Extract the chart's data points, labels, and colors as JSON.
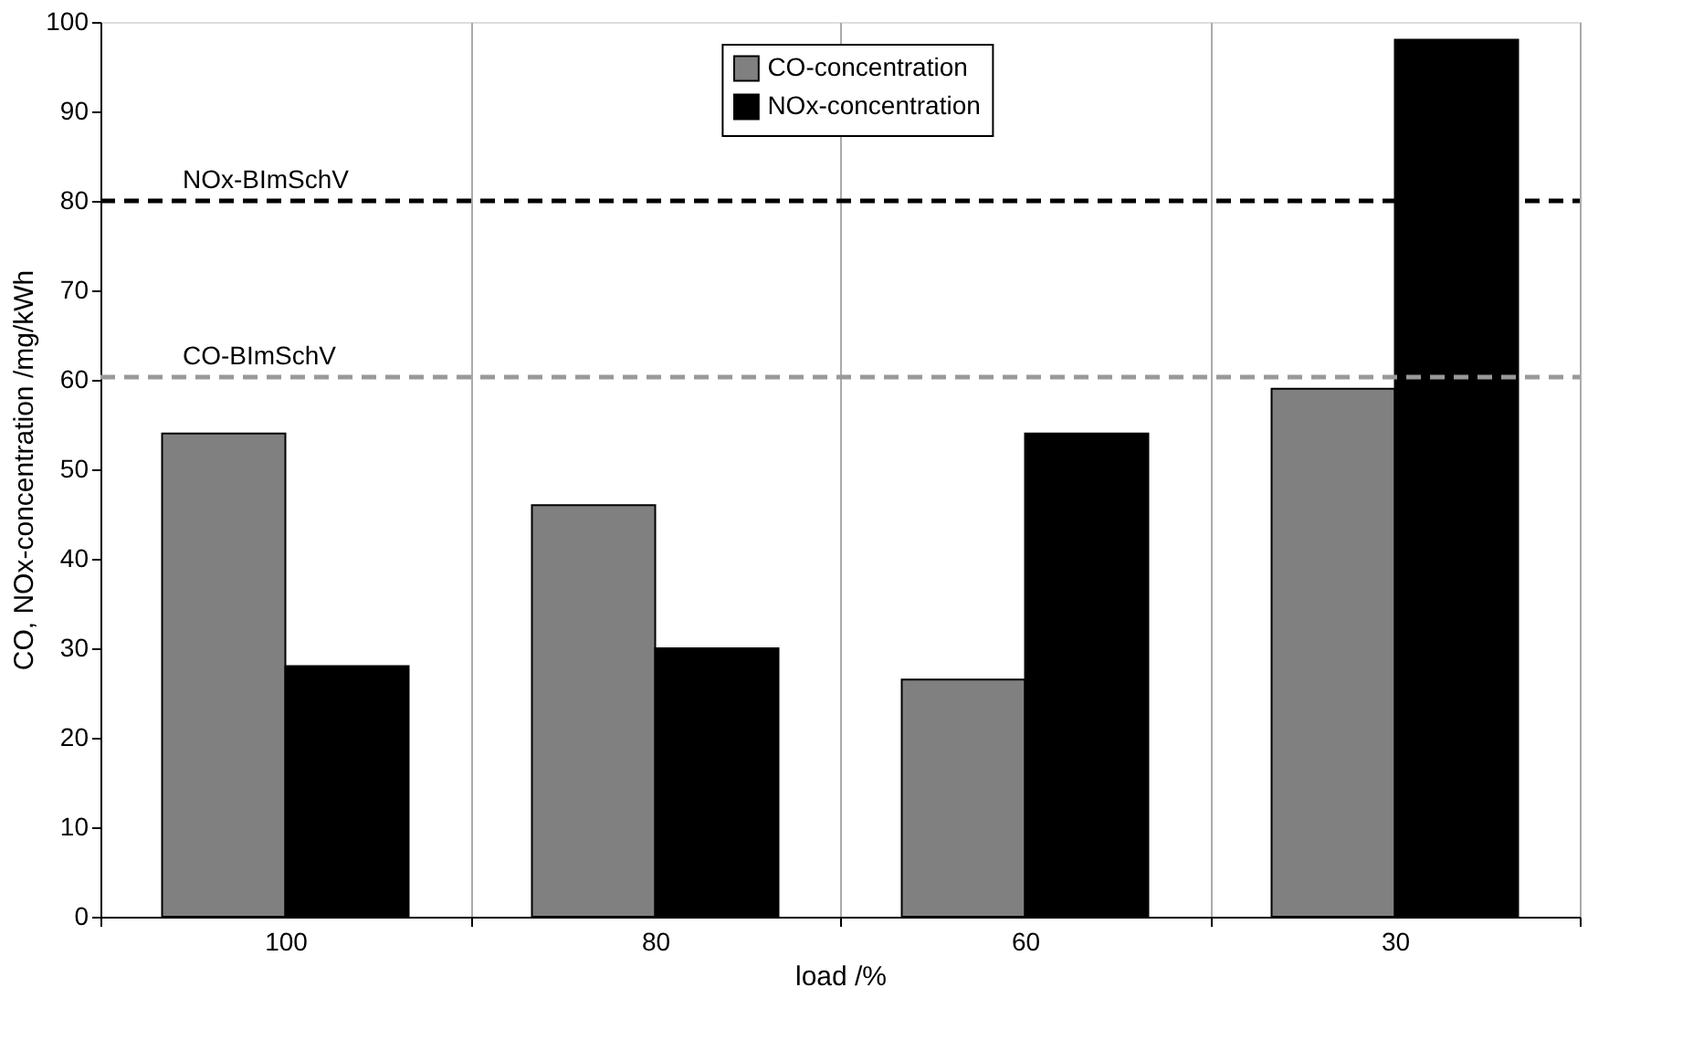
{
  "chart_data": {
    "type": "bar",
    "xlabel": "load /%",
    "ylabel": "CO, NOx-concentration /mg/kWh",
    "categories": [
      "100",
      "80",
      "60",
      "30"
    ],
    "series": [
      {
        "name": "CO-concentration",
        "color": "#808080",
        "values": [
          54,
          46,
          26.5,
          59
        ]
      },
      {
        "name": "NOx-concentration",
        "color": "#000000",
        "values": [
          28,
          30,
          54,
          98
        ]
      }
    ],
    "ylim": [
      0,
      100
    ],
    "yticks": [
      0,
      10,
      20,
      30,
      40,
      50,
      60,
      70,
      80,
      90,
      100
    ],
    "ref_lines": [
      {
        "axis": "y",
        "value": 80,
        "label": "NOx-BImSchV",
        "color": "#000000",
        "line_style": "dashed"
      },
      {
        "axis": "y",
        "value": 60.3,
        "label": "CO-BImSchV",
        "color": "#999999",
        "line_style": "dashed"
      }
    ],
    "grid": "x",
    "legend": "top"
  }
}
